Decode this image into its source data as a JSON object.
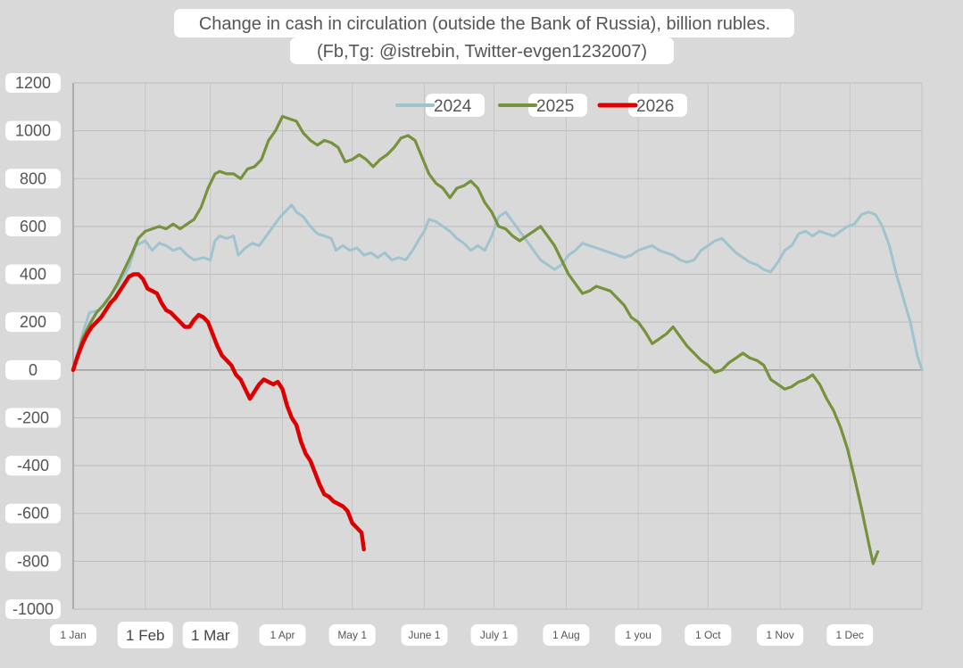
{
  "chart_data": {
    "type": "line",
    "title": "Change in cash in circulation (outside the Bank of Russia), billion rubles.",
    "subtitle": "(Fb,Tg: @istrebin, Twitter-evgen1232007)",
    "xlabel": "",
    "ylabel": "",
    "ylim": [
      -1000,
      1200
    ],
    "y_ticks": [
      1200,
      1000,
      800,
      600,
      400,
      200,
      0,
      -200,
      -400,
      -600,
      -800,
      -1000
    ],
    "x_tick_labels": [
      "1 Jan",
      "1 Feb",
      "1 Mar",
      "1 Apr",
      "May 1",
      "June 1",
      "July 1",
      "1 Aug",
      "1 you",
      "1 Oct",
      "1 Nov",
      "1 Dec"
    ],
    "x_unit": "day of year",
    "x_tick_days": [
      1,
      32,
      60,
      91,
      121,
      152,
      182,
      213,
      244,
      274,
      305,
      335
    ],
    "xlim": [
      1,
      366
    ],
    "grid": true,
    "legend_position": "top-center",
    "series": [
      {
        "name": "2024",
        "color": "#9fc3cf",
        "points": [
          [
            1,
            0
          ],
          [
            5,
            150
          ],
          [
            8,
            240
          ],
          [
            12,
            250
          ],
          [
            16,
            300
          ],
          [
            20,
            350
          ],
          [
            25,
            430
          ],
          [
            28,
            520
          ],
          [
            32,
            540
          ],
          [
            35,
            500
          ],
          [
            38,
            530
          ],
          [
            41,
            520
          ],
          [
            44,
            500
          ],
          [
            47,
            510
          ],
          [
            50,
            480
          ],
          [
            53,
            460
          ],
          [
            57,
            470
          ],
          [
            60,
            460
          ],
          [
            62,
            540
          ],
          [
            64,
            560
          ],
          [
            67,
            550
          ],
          [
            70,
            560
          ],
          [
            72,
            480
          ],
          [
            75,
            510
          ],
          [
            78,
            530
          ],
          [
            81,
            520
          ],
          [
            84,
            560
          ],
          [
            87,
            600
          ],
          [
            90,
            640
          ],
          [
            93,
            670
          ],
          [
            95,
            690
          ],
          [
            97,
            660
          ],
          [
            100,
            640
          ],
          [
            103,
            600
          ],
          [
            106,
            570
          ],
          [
            109,
            560
          ],
          [
            112,
            550
          ],
          [
            114,
            500
          ],
          [
            117,
            520
          ],
          [
            120,
            500
          ],
          [
            123,
            510
          ],
          [
            126,
            480
          ],
          [
            129,
            490
          ],
          [
            132,
            470
          ],
          [
            135,
            490
          ],
          [
            138,
            460
          ],
          [
            141,
            470
          ],
          [
            144,
            460
          ],
          [
            147,
            500
          ],
          [
            150,
            550
          ],
          [
            152,
            580
          ],
          [
            154,
            630
          ],
          [
            157,
            620
          ],
          [
            160,
            600
          ],
          [
            163,
            580
          ],
          [
            166,
            550
          ],
          [
            169,
            530
          ],
          [
            172,
            500
          ],
          [
            175,
            520
          ],
          [
            178,
            500
          ],
          [
            181,
            560
          ],
          [
            184,
            640
          ],
          [
            187,
            660
          ],
          [
            190,
            620
          ],
          [
            193,
            580
          ],
          [
            196,
            540
          ],
          [
            199,
            500
          ],
          [
            202,
            460
          ],
          [
            205,
            440
          ],
          [
            208,
            420
          ],
          [
            211,
            440
          ],
          [
            214,
            480
          ],
          [
            217,
            500
          ],
          [
            220,
            530
          ],
          [
            223,
            520
          ],
          [
            226,
            510
          ],
          [
            229,
            500
          ],
          [
            232,
            490
          ],
          [
            235,
            480
          ],
          [
            238,
            470
          ],
          [
            241,
            480
          ],
          [
            244,
            500
          ],
          [
            247,
            510
          ],
          [
            250,
            520
          ],
          [
            253,
            500
          ],
          [
            256,
            490
          ],
          [
            259,
            480
          ],
          [
            262,
            460
          ],
          [
            265,
            450
          ],
          [
            268,
            460
          ],
          [
            271,
            500
          ],
          [
            274,
            520
          ],
          [
            277,
            540
          ],
          [
            280,
            550
          ],
          [
            283,
            520
          ],
          [
            286,
            490
          ],
          [
            289,
            470
          ],
          [
            292,
            450
          ],
          [
            295,
            440
          ],
          [
            298,
            420
          ],
          [
            301,
            410
          ],
          [
            304,
            450
          ],
          [
            307,
            500
          ],
          [
            310,
            520
          ],
          [
            313,
            570
          ],
          [
            316,
            580
          ],
          [
            319,
            560
          ],
          [
            322,
            580
          ],
          [
            325,
            570
          ],
          [
            328,
            560
          ],
          [
            331,
            580
          ],
          [
            334,
            600
          ],
          [
            337,
            610
          ],
          [
            340,
            650
          ],
          [
            343,
            660
          ],
          [
            346,
            650
          ],
          [
            349,
            600
          ],
          [
            352,
            520
          ],
          [
            355,
            400
          ],
          [
            358,
            300
          ],
          [
            361,
            200
          ],
          [
            364,
            60
          ],
          [
            366,
            0
          ]
        ]
      },
      {
        "name": "2025",
        "color": "#76923c",
        "points": [
          [
            1,
            0
          ],
          [
            5,
            130
          ],
          [
            8,
            190
          ],
          [
            11,
            240
          ],
          [
            14,
            270
          ],
          [
            17,
            310
          ],
          [
            20,
            360
          ],
          [
            23,
            420
          ],
          [
            26,
            480
          ],
          [
            29,
            550
          ],
          [
            32,
            580
          ],
          [
            35,
            590
          ],
          [
            38,
            600
          ],
          [
            41,
            590
          ],
          [
            44,
            610
          ],
          [
            47,
            590
          ],
          [
            50,
            610
          ],
          [
            53,
            630
          ],
          [
            56,
            680
          ],
          [
            59,
            760
          ],
          [
            62,
            820
          ],
          [
            64,
            830
          ],
          [
            67,
            820
          ],
          [
            70,
            820
          ],
          [
            73,
            800
          ],
          [
            76,
            840
          ],
          [
            79,
            850
          ],
          [
            82,
            880
          ],
          [
            85,
            960
          ],
          [
            88,
            1000
          ],
          [
            91,
            1060
          ],
          [
            94,
            1050
          ],
          [
            97,
            1040
          ],
          [
            100,
            990
          ],
          [
            103,
            960
          ],
          [
            106,
            940
          ],
          [
            109,
            960
          ],
          [
            112,
            950
          ],
          [
            115,
            930
          ],
          [
            118,
            870
          ],
          [
            121,
            880
          ],
          [
            124,
            900
          ],
          [
            127,
            880
          ],
          [
            130,
            850
          ],
          [
            133,
            880
          ],
          [
            136,
            900
          ],
          [
            139,
            930
          ],
          [
            142,
            970
          ],
          [
            145,
            980
          ],
          [
            148,
            960
          ],
          [
            151,
            890
          ],
          [
            154,
            820
          ],
          [
            157,
            780
          ],
          [
            160,
            760
          ],
          [
            163,
            720
          ],
          [
            166,
            760
          ],
          [
            169,
            770
          ],
          [
            172,
            790
          ],
          [
            175,
            760
          ],
          [
            178,
            700
          ],
          [
            181,
            660
          ],
          [
            184,
            600
          ],
          [
            187,
            590
          ],
          [
            190,
            560
          ],
          [
            193,
            540
          ],
          [
            196,
            560
          ],
          [
            199,
            580
          ],
          [
            202,
            600
          ],
          [
            205,
            560
          ],
          [
            208,
            520
          ],
          [
            211,
            460
          ],
          [
            214,
            400
          ],
          [
            217,
            360
          ],
          [
            220,
            320
          ],
          [
            223,
            330
          ],
          [
            226,
            350
          ],
          [
            229,
            340
          ],
          [
            232,
            330
          ],
          [
            235,
            300
          ],
          [
            238,
            270
          ],
          [
            241,
            220
          ],
          [
            244,
            200
          ],
          [
            247,
            160
          ],
          [
            250,
            110
          ],
          [
            253,
            130
          ],
          [
            256,
            150
          ],
          [
            259,
            180
          ],
          [
            262,
            140
          ],
          [
            265,
            100
          ],
          [
            268,
            70
          ],
          [
            271,
            40
          ],
          [
            274,
            20
          ],
          [
            277,
            -10
          ],
          [
            280,
            0
          ],
          [
            283,
            30
          ],
          [
            286,
            50
          ],
          [
            289,
            70
          ],
          [
            292,
            50
          ],
          [
            295,
            40
          ],
          [
            298,
            20
          ],
          [
            301,
            -40
          ],
          [
            304,
            -60
          ],
          [
            307,
            -80
          ],
          [
            310,
            -70
          ],
          [
            313,
            -50
          ],
          [
            316,
            -40
          ],
          [
            319,
            -20
          ],
          [
            322,
            -60
          ],
          [
            325,
            -120
          ],
          [
            328,
            -170
          ],
          [
            331,
            -240
          ],
          [
            334,
            -330
          ],
          [
            337,
            -450
          ],
          [
            340,
            -580
          ],
          [
            343,
            -720
          ],
          [
            345,
            -810
          ],
          [
            347,
            -760
          ]
        ]
      },
      {
        "name": "2026",
        "color": "#dd0000",
        "points": [
          [
            1,
            0
          ],
          [
            3,
            60
          ],
          [
            5,
            110
          ],
          [
            7,
            150
          ],
          [
            9,
            180
          ],
          [
            11,
            200
          ],
          [
            13,
            220
          ],
          [
            15,
            250
          ],
          [
            17,
            280
          ],
          [
            19,
            300
          ],
          [
            21,
            330
          ],
          [
            23,
            360
          ],
          [
            25,
            390
          ],
          [
            27,
            400
          ],
          [
            29,
            400
          ],
          [
            31,
            380
          ],
          [
            33,
            340
          ],
          [
            35,
            330
          ],
          [
            37,
            320
          ],
          [
            39,
            280
          ],
          [
            41,
            250
          ],
          [
            43,
            240
          ],
          [
            45,
            220
          ],
          [
            47,
            200
          ],
          [
            49,
            180
          ],
          [
            51,
            180
          ],
          [
            53,
            210
          ],
          [
            55,
            230
          ],
          [
            57,
            220
          ],
          [
            59,
            200
          ],
          [
            61,
            150
          ],
          [
            63,
            100
          ],
          [
            65,
            60
          ],
          [
            67,
            40
          ],
          [
            69,
            20
          ],
          [
            71,
            -20
          ],
          [
            73,
            -40
          ],
          [
            75,
            -80
          ],
          [
            77,
            -120
          ],
          [
            79,
            -90
          ],
          [
            81,
            -60
          ],
          [
            83,
            -40
          ],
          [
            85,
            -50
          ],
          [
            87,
            -60
          ],
          [
            89,
            -50
          ],
          [
            91,
            -80
          ],
          [
            93,
            -150
          ],
          [
            95,
            -200
          ],
          [
            97,
            -230
          ],
          [
            99,
            -300
          ],
          [
            101,
            -350
          ],
          [
            103,
            -380
          ],
          [
            105,
            -430
          ],
          [
            107,
            -480
          ],
          [
            109,
            -520
          ],
          [
            111,
            -530
          ],
          [
            113,
            -550
          ],
          [
            115,
            -560
          ],
          [
            117,
            -570
          ],
          [
            119,
            -590
          ],
          [
            121,
            -640
          ],
          [
            123,
            -660
          ],
          [
            125,
            -680
          ],
          [
            126,
            -750
          ]
        ]
      }
    ]
  },
  "colors": {
    "background": "#d9d9d9",
    "label_pill": "#ffffff"
  }
}
